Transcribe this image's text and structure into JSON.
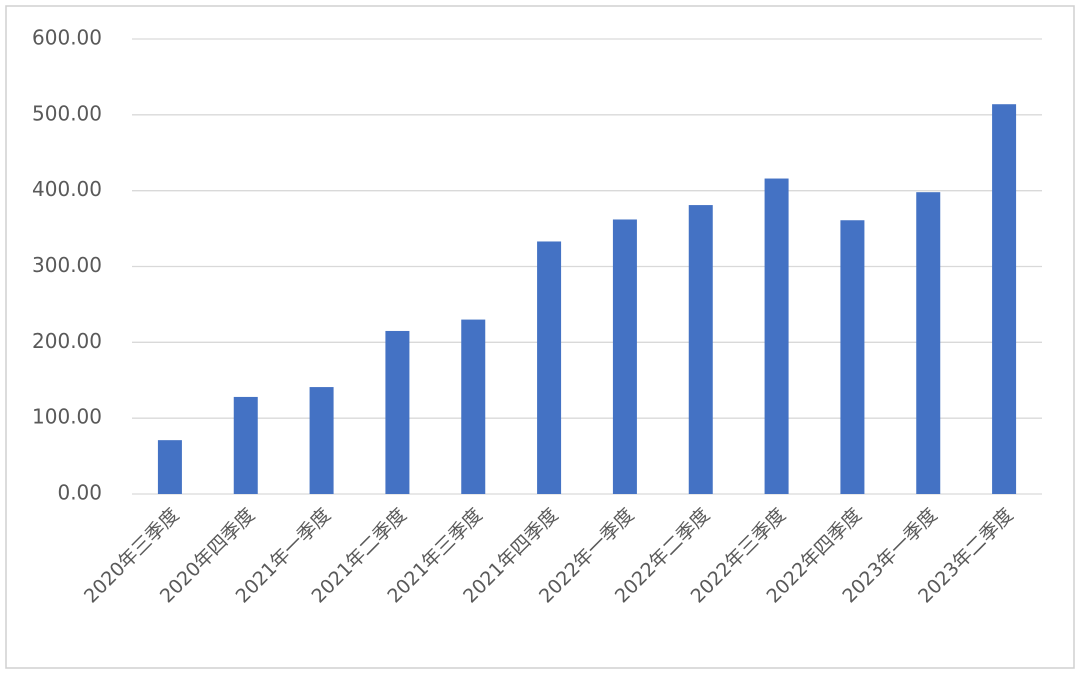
{
  "chart_data": {
    "type": "bar",
    "categories": [
      "2020年三季度",
      "2020年四季度",
      "2021年一季度",
      "2021年二季度",
      "2021年三季度",
      "2021年四季度",
      "2022年一季度",
      "2022年二季度",
      "2022年三季度",
      "2022年四季度",
      "2023年一季度",
      "2023年二季度"
    ],
    "values": [
      71,
      128,
      141,
      215,
      230,
      333,
      362,
      381,
      416,
      361,
      398,
      514
    ],
    "color": "#4472c4",
    "ylim": [
      0,
      600
    ],
    "yticks": [
      {
        "value": 0,
        "label": "0.00"
      },
      {
        "value": 100,
        "label": "100.00"
      },
      {
        "value": 200,
        "label": "200.00"
      },
      {
        "value": 300,
        "label": "300.00"
      },
      {
        "value": 400,
        "label": "400.00"
      },
      {
        "value": 500,
        "label": "500.00"
      },
      {
        "value": 600,
        "label": "600.00"
      }
    ],
    "grid": true
  }
}
